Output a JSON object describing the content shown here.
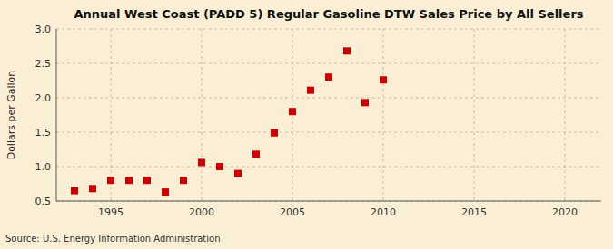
{
  "chart_data": {
    "type": "scatter",
    "title": "Annual West Coast (PADD 5) Regular Gasoline DTW Sales Price by All Sellers",
    "ylabel": "Dollars per Gallon",
    "source": "Source: U.S. Energy Information Administration",
    "x": [
      1993,
      1994,
      1995,
      1996,
      1997,
      1998,
      1999,
      2000,
      2001,
      2002,
      2003,
      2004,
      2005,
      2006,
      2007,
      2008,
      2009,
      2010
    ],
    "values": [
      0.65,
      0.68,
      0.8,
      0.8,
      0.8,
      0.63,
      0.8,
      1.06,
      1.0,
      0.9,
      1.18,
      1.49,
      1.8,
      2.11,
      2.3,
      2.68,
      1.93,
      2.26
    ],
    "xlim": [
      1992,
      2022
    ],
    "ylim": [
      0.5,
      3.0
    ],
    "xticks": [
      1995,
      2000,
      2005,
      2010,
      2015,
      2020
    ],
    "yticks": [
      0.5,
      {
        "value": 1.0,
        "label": "1.0"
      },
      1.5,
      {
        "value": 2.0,
        "label": "2.0"
      },
      2.5,
      {
        "value": 3.0,
        "label": "3.0"
      }
    ],
    "color": "#cc0000",
    "marker": "square",
    "grid": true
  }
}
